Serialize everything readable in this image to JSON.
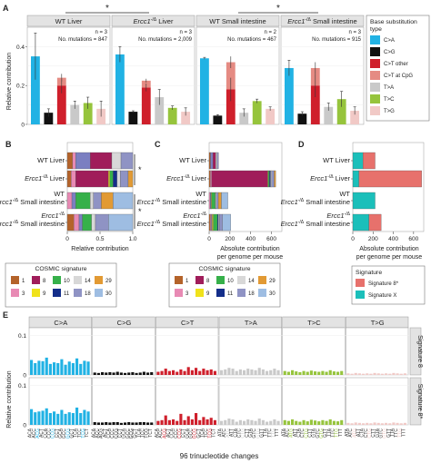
{
  "panel_labels": [
    "A",
    "B",
    "C",
    "D",
    "E"
  ],
  "colors": {
    "C>A": "#21b2e4",
    "C>G": "#111111",
    "C>T other": "#cf1f2b",
    "C>T at CpG": "#e58b83",
    "T>A": "#c9c9c9",
    "T>C": "#96c43c",
    "T>G": "#f1c9c6",
    "Signature 8*": "#e7716c",
    "Signature X": "#1bbfba",
    "cosmic": {
      "1": "#b4632a",
      "3": "#e88ab4",
      "5": "#7b7fc1",
      "8": "#a01d5a",
      "9": "#f0e21b",
      "10": "#36b04a",
      "11": "#142e8a",
      "14": "#d8d8d8",
      "18": "#8f93c4",
      "29": "#e29a34",
      "30": "#9ebde2"
    }
  },
  "chart_data": [
    {
      "panel": "A",
      "type": "bar",
      "ylabel": "Relative contribution",
      "ylim": [
        0,
        0.5
      ],
      "yticks": [
        "0",
        "0.2",
        "0.4"
      ],
      "categories": [
        "C>A",
        "C>G",
        "C>T other",
        "C>T at CpG",
        "T>A",
        "T>C",
        "T>G"
      ],
      "legend_title": "Base substitution type",
      "significance": [
        "*",
        "*"
      ],
      "facets": [
        {
          "title": "WT Liver",
          "title_italic": "",
          "n_label": "n = 3",
          "mutations_label": "No. mutations = 847",
          "values": [
            0.35,
            0.06,
            0.2,
            0.04,
            0.1,
            0.11,
            0.08
          ],
          "errors": [
            0.12,
            0.02,
            0.04,
            0.02,
            0.02,
            0.03,
            0.04
          ]
        },
        {
          "title": " Liver",
          "title_italic": "Ercc1",
          "n_label": "n = 3",
          "mutations_label": "No. mutations = 2,009",
          "values": [
            0.36,
            0.065,
            0.19,
            0.035,
            0.14,
            0.085,
            0.065
          ],
          "errors": [
            0.04,
            0.005,
            0.02,
            0.01,
            0.04,
            0.01,
            0.02
          ]
        },
        {
          "title": "WT Small intestine",
          "title_italic": "",
          "n_label": "n = 2",
          "mutations_label": "No. mutations = 467",
          "values": [
            0.34,
            0.045,
            0.18,
            0.14,
            0.06,
            0.12,
            0.08
          ],
          "errors": [
            0.005,
            0.005,
            0.06,
            0.03,
            0.02,
            0.01,
            0.01
          ]
        },
        {
          "title": " Small intestine",
          "title_italic": "Ercc1",
          "n_label": "n = 3",
          "mutations_label": "No. mutations = 915",
          "values": [
            0.29,
            0.055,
            0.2,
            0.09,
            0.09,
            0.13,
            0.07
          ],
          "errors": [
            0.04,
            0.01,
            0.06,
            0.03,
            0.02,
            0.04,
            0.02
          ]
        }
      ]
    },
    {
      "panel": "B",
      "type": "bar",
      "orientation": "horizontal",
      "stacked": true,
      "xlabel": "Relative contribution",
      "xlim": [
        0,
        1
      ],
      "xticks": [
        "0",
        "0.5",
        "1.0"
      ],
      "categories": [
        "WT Liver",
        "Liver",
        "WT Small intestine",
        "Small intestine"
      ],
      "signatures": [
        "1",
        "3",
        "5",
        "8",
        "9",
        "10",
        "11",
        "14",
        "18",
        "29",
        "30"
      ],
      "rows": [
        [
          0.08,
          0.05,
          0.22,
          0.33,
          0.0,
          0.0,
          0.0,
          0.14,
          0.18,
          0.0,
          0.0
        ],
        [
          0.06,
          0.07,
          0.0,
          0.5,
          0.02,
          0.05,
          0.06,
          0.05,
          0.12,
          0.07,
          0.0
        ],
        [
          0.0,
          0.07,
          0.06,
          0.0,
          0.0,
          0.22,
          0.0,
          0.05,
          0.12,
          0.18,
          0.3
        ],
        [
          0.1,
          0.08,
          0.05,
          0.0,
          0.0,
          0.14,
          0.0,
          0.06,
          0.2,
          0.0,
          0.37
        ]
      ],
      "significance": [
        "*",
        "*"
      ]
    },
    {
      "panel": "C",
      "type": "bar",
      "orientation": "horizontal",
      "stacked": true,
      "xlabel": "Absolute contribution per genome per mouse",
      "xlim": [
        0,
        700
      ],
      "xticks": [
        "0",
        "200",
        "400",
        "600"
      ],
      "categories": [
        "WT Liver",
        "Liver",
        "WT Small intestine",
        "Small intestine"
      ],
      "signatures": [
        "1",
        "3",
        "5",
        "8",
        "9",
        "10",
        "11",
        "14",
        "18",
        "29",
        "30"
      ],
      "rows": [
        [
          10,
          6,
          20,
          28,
          0,
          0,
          0,
          12,
          14,
          0,
          0
        ],
        [
          12,
          12,
          0,
          540,
          5,
          12,
          10,
          10,
          25,
          14,
          0
        ],
        [
          0,
          10,
          8,
          0,
          6,
          36,
          0,
          8,
          20,
          30,
          62
        ],
        [
          12,
          10,
          8,
          0,
          10,
          40,
          10,
          8,
          30,
          0,
          80
        ]
      ],
      "legend_title": "COSMIC signature"
    },
    {
      "panel": "D",
      "type": "bar",
      "orientation": "horizontal",
      "stacked": true,
      "xlabel": "Absolute contribution per genome per mouse",
      "xlim": [
        0,
        700
      ],
      "xticks": [
        "0",
        "200",
        "400",
        "600"
      ],
      "categories": [
        "WT Liver",
        "Liver",
        "WT Small intestine",
        "Small intestine"
      ],
      "series": [
        {
          "name": "Signature 8*",
          "values": [
            120,
            620,
            0,
            120
          ]
        },
        {
          "name": "Signature X",
          "values": [
            100,
            60,
            220,
            160
          ]
        }
      ],
      "legend_title": "Signature"
    },
    {
      "panel": "E",
      "type": "bar",
      "ylabel": "Relative contribution",
      "ylim": [
        0,
        0.12
      ],
      "yticks": [
        "0",
        "0.1"
      ],
      "xlabel": "96 trinucleotide changes",
      "groups": [
        "C>A",
        "C>G",
        "C>T",
        "T>A",
        "T>C",
        "T>G"
      ],
      "contexts": [
        "A.A",
        "A.C",
        "A.G",
        "A.T",
        "C.A",
        "C.C",
        "C.G",
        "C.T",
        "G.A",
        "G.C",
        "G.G",
        "G.T",
        "T.A",
        "T.C",
        "T.G",
        "T.T"
      ],
      "series": [
        {
          "name": "Signature 8",
          "values": [
            0.038,
            0.03,
            0.036,
            0.035,
            0.044,
            0.028,
            0.032,
            0.03,
            0.04,
            0.026,
            0.034,
            0.03,
            0.042,
            0.028,
            0.036,
            0.034,
            0.006,
            0.005,
            0.007,
            0.006,
            0.007,
            0.006,
            0.008,
            0.006,
            0.005,
            0.006,
            0.007,
            0.005,
            0.006,
            0.008,
            0.006,
            0.007,
            0.008,
            0.01,
            0.016,
            0.01,
            0.012,
            0.008,
            0.014,
            0.01,
            0.02,
            0.012,
            0.018,
            0.01,
            0.016,
            0.012,
            0.014,
            0.01,
            0.012,
            0.014,
            0.018,
            0.016,
            0.01,
            0.014,
            0.012,
            0.016,
            0.014,
            0.012,
            0.018,
            0.014,
            0.01,
            0.012,
            0.016,
            0.012,
            0.01,
            0.008,
            0.012,
            0.009,
            0.007,
            0.01,
            0.008,
            0.011,
            0.009,
            0.008,
            0.01,
            0.008,
            0.012,
            0.009,
            0.008,
            0.01,
            0.004,
            0.003,
            0.005,
            0.004,
            0.003,
            0.004,
            0.003,
            0.005,
            0.004,
            0.003,
            0.004,
            0.003,
            0.005,
            0.004,
            0.003,
            0.004
          ]
        },
        {
          "name": "Signature 8*",
          "values": [
            0.04,
            0.032,
            0.034,
            0.036,
            0.042,
            0.03,
            0.034,
            0.028,
            0.038,
            0.028,
            0.032,
            0.03,
            0.044,
            0.03,
            0.038,
            0.034,
            0.007,
            0.006,
            0.006,
            0.007,
            0.006,
            0.007,
            0.007,
            0.005,
            0.006,
            0.007,
            0.006,
            0.006,
            0.007,
            0.007,
            0.006,
            0.006,
            0.01,
            0.012,
            0.024,
            0.012,
            0.014,
            0.01,
            0.028,
            0.012,
            0.022,
            0.014,
            0.03,
            0.012,
            0.02,
            0.014,
            0.018,
            0.012,
            0.01,
            0.012,
            0.016,
            0.014,
            0.008,
            0.012,
            0.01,
            0.014,
            0.012,
            0.01,
            0.016,
            0.012,
            0.008,
            0.01,
            0.014,
            0.01,
            0.012,
            0.01,
            0.014,
            0.01,
            0.008,
            0.012,
            0.009,
            0.013,
            0.011,
            0.009,
            0.012,
            0.01,
            0.014,
            0.01,
            0.009,
            0.012,
            0.005,
            0.004,
            0.006,
            0.005,
            0.004,
            0.005,
            0.004,
            0.006,
            0.005,
            0.004,
            0.005,
            0.004,
            0.006,
            0.005,
            0.004,
            0.005
          ]
        }
      ],
      "strip_labels": [
        "Signature 8",
        "Signature 8*"
      ]
    }
  ]
}
